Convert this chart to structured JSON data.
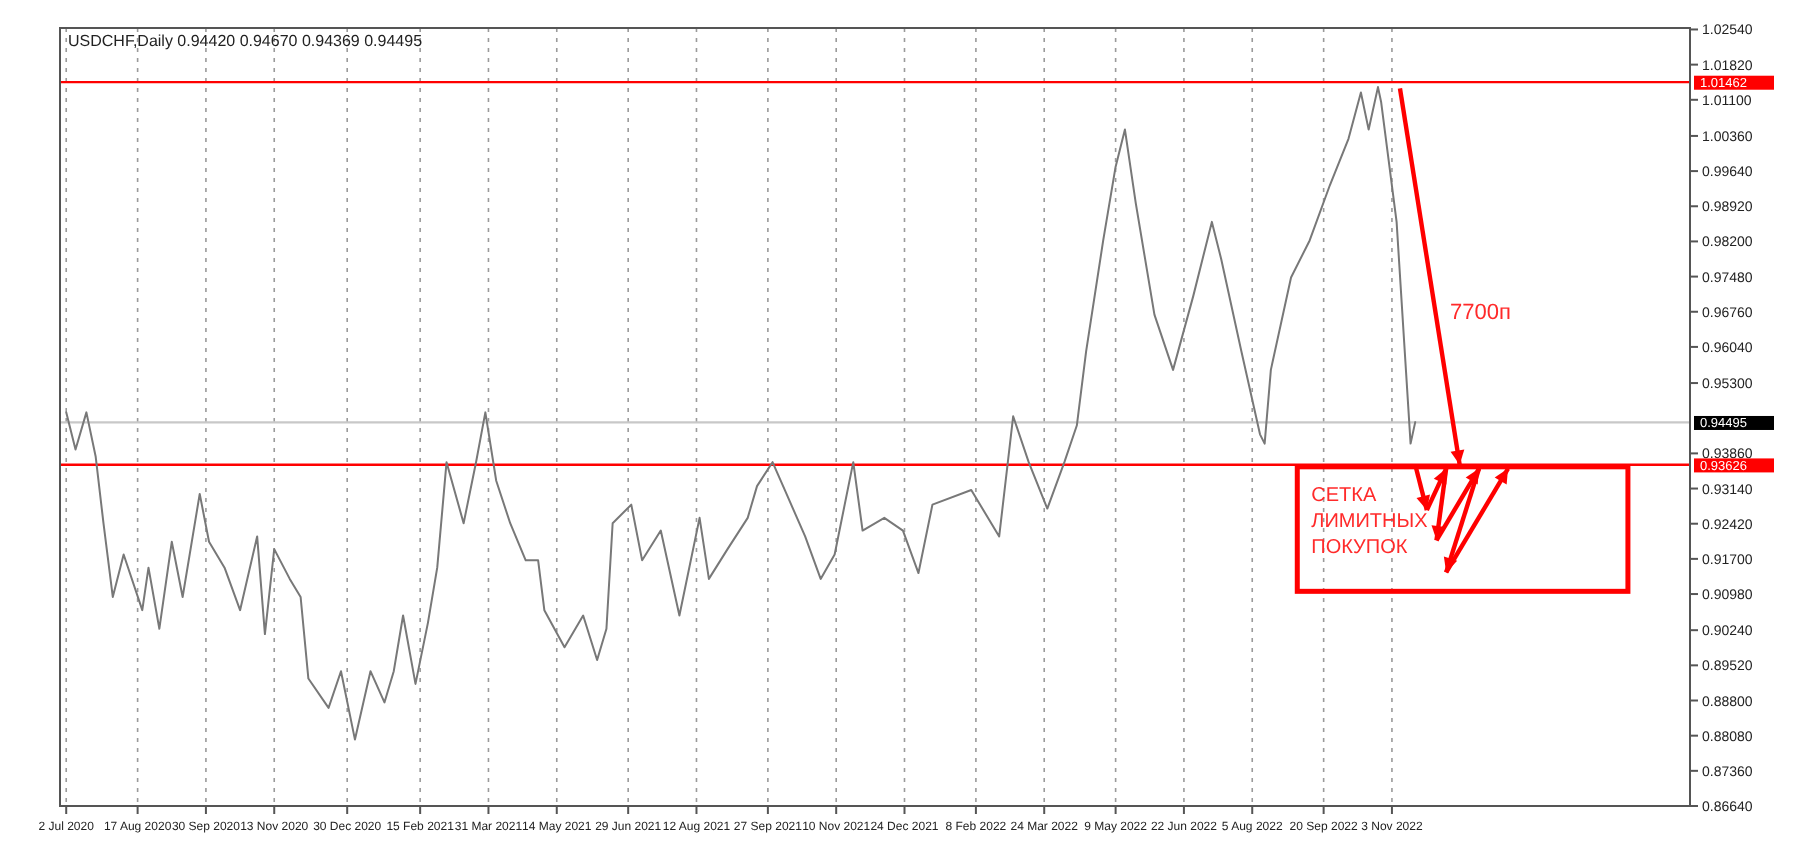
{
  "chart_data": {
    "type": "line",
    "title": "USDCHF,Daily 0.94420 0.94670 0.94369 0.94495",
    "x": [
      "2020-07-02",
      "2020-07-08",
      "2020-07-15",
      "2020-07-21",
      "2020-07-26",
      "2020-08-01",
      "2020-08-08",
      "2020-08-20",
      "2020-08-24",
      "2020-08-31",
      "2020-09-08",
      "2020-09-15",
      "2020-09-26",
      "2020-10-02",
      "2020-10-12",
      "2020-10-22",
      "2020-11-02",
      "2020-11-07",
      "2020-11-13",
      "2020-11-23",
      "2020-11-30",
      "2020-12-05",
      "2020-12-18",
      "2020-12-26",
      "2021-01-04",
      "2021-01-14",
      "2021-01-23",
      "2021-01-29",
      "2021-02-04",
      "2021-02-12",
      "2021-02-20",
      "2021-02-26",
      "2021-03-04",
      "2021-03-15",
      "2021-03-23",
      "2021-03-29",
      "2021-04-05",
      "2021-04-14",
      "2021-04-24",
      "2021-05-02",
      "2021-05-06",
      "2021-05-19",
      "2021-05-31",
      "2021-06-09",
      "2021-06-15",
      "2021-06-19",
      "2021-07-01",
      "2021-07-08",
      "2021-07-20",
      "2021-08-01",
      "2021-08-14",
      "2021-08-20",
      "2021-09-01",
      "2021-09-14",
      "2021-09-20",
      "2021-09-30",
      "2021-10-09",
      "2021-10-21",
      "2021-10-31",
      "2021-11-09",
      "2021-11-21",
      "2021-11-27",
      "2021-12-11",
      "2021-12-23",
      "2022-01-02",
      "2022-01-11",
      "2022-02-05",
      "2022-02-23",
      "2022-03-04",
      "2022-03-14",
      "2022-03-26",
      "2022-04-06",
      "2022-04-14",
      "2022-04-20",
      "2022-05-01",
      "2022-05-09",
      "2022-05-15",
      "2022-05-22",
      "2022-06-03",
      "2022-06-15",
      "2022-06-28",
      "2022-07-10",
      "2022-07-16",
      "2022-07-29",
      "2022-08-10",
      "2022-08-13",
      "2022-08-17",
      "2022-08-30",
      "2022-09-11",
      "2022-09-24",
      "2022-10-06",
      "2022-10-14",
      "2022-10-19",
      "2022-10-25",
      "2022-10-27",
      "2022-11-06",
      "2022-11-12",
      "2022-11-15",
      "2022-11-18"
    ],
    "series": [
      {
        "color": "#787878",
        "values": [
          0.947,
          0.9394,
          0.947,
          0.9379,
          0.9243,
          0.9092,
          0.9179,
          0.9065,
          0.9152,
          0.9027,
          0.9205,
          0.9092,
          0.9303,
          0.9205,
          0.9152,
          0.9065,
          0.9216,
          0.9016,
          0.919,
          0.9129,
          0.9092,
          0.8925,
          0.8865,
          0.894,
          0.88,
          0.894,
          0.8876,
          0.894,
          0.9054,
          0.8914,
          0.9039,
          0.9152,
          0.9368,
          0.9243,
          0.9368,
          0.947,
          0.933,
          0.9243,
          0.9167,
          0.9167,
          0.9065,
          0.8989,
          0.9054,
          0.8963,
          0.9027,
          0.9243,
          0.9281,
          0.9167,
          0.9228,
          0.9054,
          0.9254,
          0.9129,
          0.919,
          0.9254,
          0.9319,
          0.9368,
          0.9303,
          0.9216,
          0.9129,
          0.9179,
          0.9368,
          0.9228,
          0.9254,
          0.9228,
          0.9141,
          0.9281,
          0.9311,
          0.9216,
          0.9462,
          0.9368,
          0.9273,
          0.9368,
          0.9443,
          0.9595,
          0.9822,
          0.9973,
          1.0049,
          0.9898,
          0.967,
          0.9557,
          0.9708,
          0.986,
          0.9784,
          0.9595,
          0.9425,
          0.9406,
          0.9557,
          0.9746,
          0.9822,
          0.9935,
          1.003,
          1.0125,
          1.0049,
          1.0136,
          1.0106,
          0.986,
          0.9557,
          0.9406,
          0.945
        ]
      }
    ],
    "xlim": [
      "2020-06-28",
      "2023-05-14"
    ],
    "xticks": [
      {
        "value": "2020-07-02",
        "label": "2 Jul 2020"
      },
      {
        "value": "2020-08-17",
        "label": "17 Aug 2020"
      },
      {
        "value": "2020-09-30",
        "label": "30 Sep 2020"
      },
      {
        "value": "2020-11-13",
        "label": "13 Nov 2020"
      },
      {
        "value": "2020-12-30",
        "label": "30 Dec 2020"
      },
      {
        "value": "2021-02-15",
        "label": "15 Feb 2021"
      },
      {
        "value": "2021-03-31",
        "label": "31 Mar 2021"
      },
      {
        "value": "2021-05-14",
        "label": "14 May 2021"
      },
      {
        "value": "2021-06-29",
        "label": "29 Jun 2021"
      },
      {
        "value": "2021-08-12",
        "label": "12 Aug 2021"
      },
      {
        "value": "2021-09-27",
        "label": "27 Sep 2021"
      },
      {
        "value": "2021-11-10",
        "label": "10 Nov 2021"
      },
      {
        "value": "2021-12-24",
        "label": "24 Dec 2021"
      },
      {
        "value": "2022-02-08",
        "label": "8 Feb 2022"
      },
      {
        "value": "2022-03-24",
        "label": "24 Mar 2022"
      },
      {
        "value": "2022-05-09",
        "label": "9 May 2022"
      },
      {
        "value": "2022-06-22",
        "label": "22 Jun 2022"
      },
      {
        "value": "2022-08-05",
        "label": "5 Aug 2022"
      },
      {
        "value": "2022-09-20",
        "label": "20 Sep 2022"
      },
      {
        "value": "2022-11-03",
        "label": "3 Nov 2022"
      }
    ],
    "ylim": [
      0.8664,
      1.0257
    ],
    "yticks": [
      {
        "value": 0.8664,
        "label": "0.86640"
      },
      {
        "value": 0.8736,
        "label": "0.87360"
      },
      {
        "value": 0.8808,
        "label": "0.88080"
      },
      {
        "value": 0.888,
        "label": "0.88800"
      },
      {
        "value": 0.8952,
        "label": "0.89520"
      },
      {
        "value": 0.9024,
        "label": "0.90240"
      },
      {
        "value": 0.9098,
        "label": "0.90980"
      },
      {
        "value": 0.917,
        "label": "0.91700"
      },
      {
        "value": 0.9242,
        "label": "0.92420"
      },
      {
        "value": 0.9314,
        "label": "0.93140"
      },
      {
        "value": 0.9386,
        "label": "0.93860"
      },
      {
        "value": 0.953,
        "label": "0.95300"
      },
      {
        "value": 0.9604,
        "label": "0.96040"
      },
      {
        "value": 0.9676,
        "label": "0.96760"
      },
      {
        "value": 0.9748,
        "label": "0.97480"
      },
      {
        "value": 0.982,
        "label": "0.98200"
      },
      {
        "value": 0.9892,
        "label": "0.98920"
      },
      {
        "value": 0.9964,
        "label": "0.99640"
      },
      {
        "value": 1.0036,
        "label": "1.00360"
      },
      {
        "value": 1.011,
        "label": "1.01100"
      },
      {
        "value": 1.0182,
        "label": "1.01820"
      },
      {
        "value": 1.0254,
        "label": "1.02540"
      }
    ],
    "ref_lines": [
      {
        "axis": "y",
        "value": 1.01462,
        "label": "1.01462",
        "color": "#ff0000"
      },
      {
        "axis": "y",
        "value": 0.93626,
        "label": "0.93626",
        "color": "#ff0000"
      },
      {
        "axis": "y",
        "value": 0.94495,
        "label": "0.94495",
        "color": "#c8c8c8"
      }
    ],
    "grid": "x",
    "line_style": "solid",
    "annotations": [
      "7700п",
      {
        "text": "СЕТКА\nЛИМИТНЫХ\nПОКУПОК",
        "x": "2022-11-18",
        "y": 0.93626
      }
    ]
  }
}
